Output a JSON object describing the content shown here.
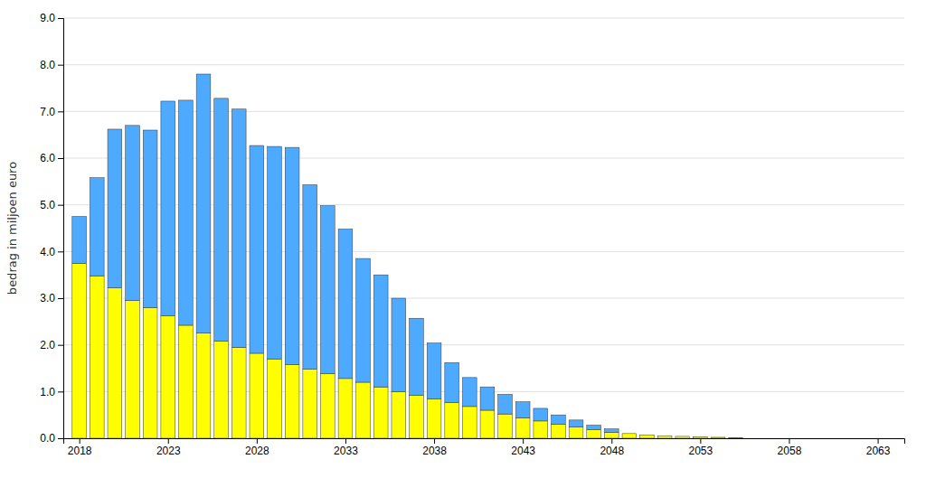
{
  "chart_data": {
    "type": "bar",
    "stacked": true,
    "grid": true,
    "ylabel": "bedrag in miljoen euro",
    "x": [
      2018,
      2019,
      2020,
      2021,
      2022,
      2023,
      2024,
      2025,
      2026,
      2027,
      2028,
      2029,
      2030,
      2031,
      2032,
      2033,
      2034,
      2035,
      2036,
      2037,
      2038,
      2039,
      2040,
      2041,
      2042,
      2043,
      2044,
      2045,
      2046,
      2047,
      2048,
      2049,
      2050,
      2051,
      2052,
      2053,
      2054,
      2055,
      2056,
      2057,
      2058,
      2059,
      2060
    ],
    "series": [
      {
        "color": "#FFFF00",
        "values": [
          3.75,
          3.48,
          3.22,
          2.95,
          2.8,
          2.62,
          2.42,
          2.25,
          2.08,
          1.95,
          1.82,
          1.7,
          1.58,
          1.48,
          1.38,
          1.28,
          1.2,
          1.1,
          1.0,
          0.92,
          0.84,
          0.76,
          0.68,
          0.6,
          0.52,
          0.44,
          0.37,
          0.3,
          0.24,
          0.18,
          0.13,
          0.1,
          0.07,
          0.05,
          0.04,
          0.03,
          0.02,
          0.01,
          0.0,
          0.0,
          0.0,
          0.0,
          0.0
        ]
      },
      {
        "color": "#4DAAFF",
        "values": [
          1.0,
          2.1,
          3.4,
          3.75,
          3.8,
          4.6,
          4.82,
          5.55,
          5.2,
          5.1,
          4.45,
          4.55,
          4.65,
          3.95,
          3.6,
          3.2,
          2.65,
          2.4,
          2.0,
          1.65,
          1.2,
          0.86,
          0.62,
          0.5,
          0.42,
          0.34,
          0.27,
          0.2,
          0.15,
          0.1,
          0.07,
          0.0,
          0.0,
          0.0,
          0.0,
          0.0,
          0.0,
          0.0,
          0.0,
          0.0,
          0.0,
          0.0,
          0.0
        ]
      }
    ],
    "xlim": [
      2017.1,
      2064.5
    ],
    "xticks": [
      2018,
      2023,
      2028,
      2033,
      2038,
      2043,
      2048,
      2053,
      2058,
      2063
    ],
    "ylim": [
      0.0,
      9.0
    ],
    "yticks": [
      {
        "value": 0.0,
        "label": "0.0"
      },
      {
        "value": 1.0,
        "label": "1.0"
      },
      {
        "value": 2.0,
        "label": "2.0"
      },
      {
        "value": 3.0,
        "label": "3.0"
      },
      {
        "value": 4.0,
        "label": "4.0"
      },
      {
        "value": 5.0,
        "label": "5.0"
      },
      {
        "value": 6.0,
        "label": "6.0"
      },
      {
        "value": 7.0,
        "label": "7.0"
      },
      {
        "value": 8.0,
        "label": "8.0"
      },
      {
        "value": 9.0,
        "label": "9.0"
      }
    ]
  }
}
